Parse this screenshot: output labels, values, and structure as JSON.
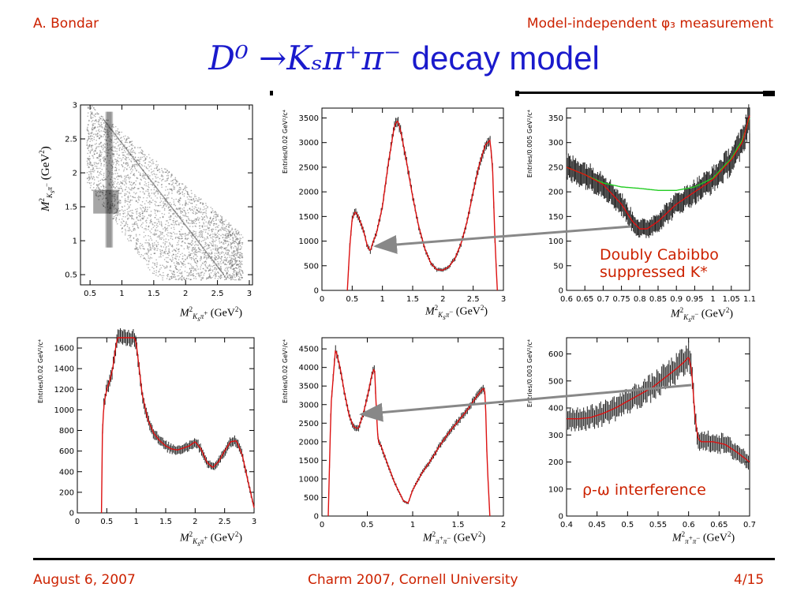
{
  "header": {
    "author": "A. Bondar",
    "talk_title": "Model-independent φ₃ measurement"
  },
  "slide_title": {
    "math": "D⁰ →Kₛπ⁺π⁻",
    "text": "decay model"
  },
  "footer": {
    "date": "August 6, 2007",
    "venue": "Charm 2007, Cornell University",
    "page": "4/15"
  },
  "annotations": {
    "dcs": "Doubly Cabibbo suppressed K*",
    "dcs_line1": "Doubly Cabibbo",
    "dcs_line2": "suppressed K*",
    "interference": "ρ-ω interference"
  },
  "colors": {
    "accent": "#cc2200",
    "title": "#1a1acc",
    "fit": "#dd1111",
    "alt_fit": "#22cc22",
    "data": "#222222",
    "arrow": "#888888"
  },
  "chart_data": [
    {
      "id": "dalitz",
      "type": "heatmap",
      "xlabel": "M²_{Ksπ+} (GeV²)",
      "ylabel": "M²_{Ksπ−} (GeV²)",
      "xlim": [
        0.35,
        3.05
      ],
      "ylim": [
        0.35,
        3.0
      ],
      "xticks": [
        0.5,
        1,
        1.5,
        2,
        2.5,
        3
      ],
      "yticks": [
        0.5,
        1,
        1.5,
        2,
        2.5,
        3
      ],
      "tick_labels_x": [
        "0.5",
        "1",
        "1.5",
        "2",
        "2.5",
        "3"
      ],
      "tick_labels_y": [
        "0.5",
        "1",
        "1.5",
        "2",
        "2.5",
        "3"
      ]
    },
    {
      "id": "mkspim",
      "type": "line",
      "ylabel": "Entries/0.02 GeV²/c⁴",
      "xlabel": "M²_{Ksπ−} (GeV²)",
      "xlim": [
        0,
        3
      ],
      "ylim": [
        0,
        3700
      ],
      "xticks": [
        0,
        0.5,
        1,
        1.5,
        2,
        2.5,
        3
      ],
      "yticks": [
        0,
        500,
        1000,
        1500,
        2000,
        2500,
        3000,
        3500
      ],
      "tick_labels_x": [
        "0",
        "0.5",
        "1",
        "1.5",
        "2",
        "2.5",
        "3"
      ],
      "tick_labels_y": [
        "0",
        "500",
        "1000",
        "1500",
        "2000",
        "2500",
        "3000",
        "3500"
      ],
      "x": [
        0.42,
        0.46,
        0.5,
        0.55,
        0.6,
        0.65,
        0.7,
        0.75,
        0.8,
        0.85,
        0.9,
        1.0,
        1.1,
        1.2,
        1.25,
        1.3,
        1.4,
        1.5,
        1.6,
        1.7,
        1.8,
        1.9,
        2.0,
        2.1,
        2.2,
        2.3,
        2.4,
        2.5,
        2.6,
        2.7,
        2.78,
        2.82,
        2.86,
        2.9
      ],
      "values": [
        0,
        900,
        1450,
        1600,
        1500,
        1350,
        1150,
        900,
        800,
        1000,
        1150,
        1700,
        2600,
        3350,
        3450,
        3250,
        2600,
        1900,
        1300,
        850,
        550,
        420,
        410,
        480,
        650,
        950,
        1400,
        2000,
        2550,
        2950,
        3050,
        2500,
        1000,
        0
      ]
    },
    {
      "id": "mkspim_zoom",
      "type": "line",
      "ylabel": "Entries/0.005 GeV²/c⁴",
      "xlabel": "M²_{Ksπ−} (GeV²)",
      "xlim": [
        0.6,
        1.1
      ],
      "ylim": [
        0,
        370
      ],
      "xticks": [
        0.6,
        0.65,
        0.7,
        0.75,
        0.8,
        0.85,
        0.9,
        0.95,
        1,
        1.05,
        1.1
      ],
      "yticks": [
        0,
        50,
        100,
        150,
        200,
        250,
        300,
        350
      ],
      "tick_labels_x": [
        "0.6",
        "0.65",
        "0.7",
        "0.75",
        "0.8",
        "0.85",
        "0.9",
        "0.95",
        "1",
        "1.05",
        "1.1"
      ],
      "tick_labels_y": [
        "0",
        "50",
        "100",
        "150",
        "200",
        "250",
        "300",
        "350"
      ],
      "series": [
        {
          "name": "",
          "x": [
            0.6,
            0.65,
            0.7,
            0.75,
            0.78,
            0.8,
            0.82,
            0.85,
            0.9,
            0.95,
            1.0,
            1.05,
            1.08,
            1.1
          ],
          "values": [
            250,
            235,
            215,
            175,
            140,
            125,
            125,
            140,
            175,
            200,
            225,
            265,
            300,
            355
          ]
        },
        {
          "name": "",
          "x": [
            0.6,
            0.65,
            0.7,
            0.75,
            0.8,
            0.85,
            0.9,
            0.95,
            1.0,
            1.05,
            1.08,
            1.1
          ],
          "values": [
            250,
            235,
            218,
            210,
            207,
            203,
            203,
            210,
            228,
            268,
            305,
            350
          ]
        }
      ]
    },
    {
      "id": "mkspip",
      "type": "line",
      "ylabel": "Entries/0.02 GeV²/c⁴",
      "xlabel": "M²_{Ksπ+} (GeV²)",
      "xlim": [
        0,
        3
      ],
      "ylim": [
        0,
        1700
      ],
      "xticks": [
        0,
        0.5,
        1,
        1.5,
        2,
        2.5,
        3
      ],
      "yticks": [
        0,
        200,
        400,
        600,
        800,
        1000,
        1200,
        1400,
        1600
      ],
      "tick_labels_x": [
        "0",
        "0.5",
        "1",
        "1.5",
        "2",
        "2.5",
        "3"
      ],
      "tick_labels_y": [
        "0",
        "200",
        "400",
        "600",
        "800",
        "1000",
        "1200",
        "1400",
        "1600"
      ],
      "x": [
        0.41,
        0.42,
        0.45,
        0.5,
        0.55,
        0.6,
        0.65,
        0.68,
        0.97,
        1.0,
        1.1,
        1.2,
        1.3,
        1.4,
        1.5,
        1.6,
        1.7,
        1.8,
        1.9,
        2.0,
        2.1,
        2.2,
        2.3,
        2.4,
        2.5,
        2.6,
        2.7,
        2.8,
        2.9,
        3.0
      ],
      "values": [
        0,
        700,
        1050,
        1200,
        1280,
        1400,
        1600,
        1700,
        1700,
        1650,
        1150,
        900,
        770,
        700,
        650,
        620,
        610,
        630,
        650,
        690,
        620,
        490,
        440,
        500,
        600,
        690,
        700,
        560,
        300,
        50
      ]
    },
    {
      "id": "mpipi",
      "type": "line",
      "ylabel": "Entries/0.02 GeV²/c⁴",
      "xlabel": "M²_{π+π−} (GeV²)",
      "xlim": [
        0,
        2
      ],
      "ylim": [
        0,
        4800
      ],
      "xticks": [
        0,
        0.5,
        1,
        1.5,
        2
      ],
      "yticks": [
        0,
        500,
        1000,
        1500,
        2000,
        2500,
        3000,
        3500,
        4000,
        4500
      ],
      "tick_labels_x": [
        "0",
        "0.5",
        "1",
        "1.5",
        "2"
      ],
      "tick_labels_y": [
        "0",
        "500",
        "1000",
        "1500",
        "2000",
        "2500",
        "3000",
        "3500",
        "4000",
        "4500"
      ],
      "x": [
        0.07,
        0.1,
        0.15,
        0.2,
        0.25,
        0.3,
        0.35,
        0.4,
        0.45,
        0.5,
        0.55,
        0.58,
        0.6,
        0.62,
        0.65,
        0.7,
        0.8,
        0.9,
        0.95,
        1.0,
        1.1,
        1.2,
        1.3,
        1.4,
        1.5,
        1.6,
        1.7,
        1.78,
        1.8,
        1.82,
        1.85
      ],
      "values": [
        0,
        3000,
        4500,
        4000,
        3300,
        2700,
        2400,
        2350,
        2700,
        3200,
        3800,
        4000,
        2800,
        2000,
        1900,
        1550,
        900,
        400,
        350,
        700,
        1150,
        1500,
        1900,
        2250,
        2550,
        2850,
        3200,
        3450,
        3300,
        1500,
        0
      ]
    },
    {
      "id": "mpipi_zoom",
      "type": "line",
      "ylabel": "Entries/0.003 GeV²/c⁴",
      "xlabel": "M²_{π+π−} (GeV²)",
      "xlim": [
        0.4,
        0.7
      ],
      "ylim": [
        0,
        660
      ],
      "xticks": [
        0.4,
        0.45,
        0.5,
        0.55,
        0.6,
        0.65,
        0.7
      ],
      "yticks": [
        0,
        100,
        200,
        300,
        400,
        500,
        600
      ],
      "tick_labels_x": [
        "0.4",
        "0.45",
        "0.5",
        "0.55",
        "0.6",
        "0.65",
        "0.7"
      ],
      "tick_labels_y": [
        "0",
        "100",
        "200",
        "300",
        "400",
        "500",
        "600"
      ],
      "x": [
        0.4,
        0.42,
        0.44,
        0.46,
        0.48,
        0.5,
        0.52,
        0.54,
        0.56,
        0.58,
        0.595,
        0.6,
        0.605,
        0.61,
        0.615,
        0.62,
        0.64,
        0.66,
        0.68,
        0.7
      ],
      "values": [
        360,
        360,
        365,
        380,
        400,
        425,
        450,
        475,
        510,
        545,
        575,
        590,
        540,
        380,
        290,
        275,
        275,
        265,
        235,
        200
      ]
    }
  ]
}
